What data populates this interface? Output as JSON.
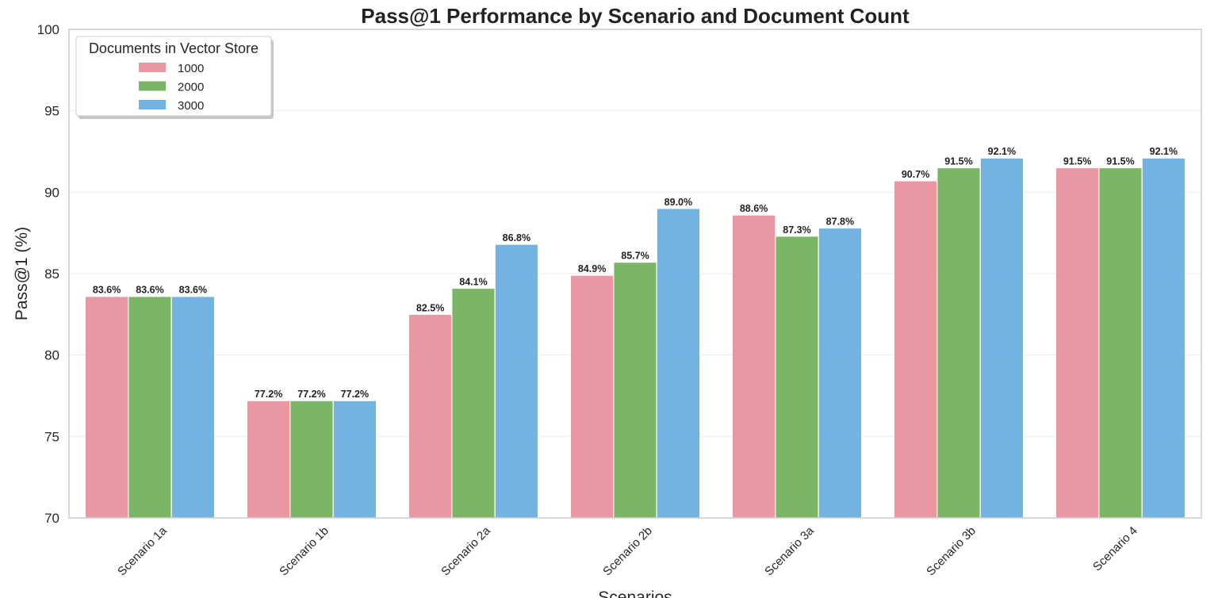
{
  "chart_data": {
    "type": "bar",
    "title": "Pass@1 Performance by Scenario and Document Count",
    "xlabel": "Scenarios",
    "ylabel": "Pass@1 (%)",
    "ylim": [
      70,
      100
    ],
    "yticks": [
      "70",
      "75",
      "80",
      "85",
      "90",
      "95",
      "100"
    ],
    "grid": "y",
    "categories": [
      "Scenario 1a",
      "Scenario 1b",
      "Scenario 2a",
      "Scenario 2b",
      "Scenario 3a",
      "Scenario 3b",
      "Scenario 4"
    ],
    "series": [
      {
        "name": "1000",
        "color": "#E8919E",
        "values": [
          83.6,
          77.2,
          82.5,
          84.9,
          88.6,
          90.7,
          91.5
        ],
        "labels": [
          "83.6%",
          "77.2%",
          "82.5%",
          "84.9%",
          "88.6%",
          "90.7%",
          "91.5%"
        ]
      },
      {
        "name": "2000",
        "color": "#74B25E",
        "values": [
          83.6,
          77.2,
          84.1,
          85.7,
          87.3,
          91.5,
          91.5
        ],
        "labels": [
          "83.6%",
          "77.2%",
          "84.1%",
          "85.7%",
          "87.3%",
          "91.5%",
          "91.5%"
        ]
      },
      {
        "name": "3000",
        "color": "#6CAFE0",
        "values": [
          83.6,
          77.2,
          86.8,
          89.0,
          87.8,
          92.1,
          92.1
        ],
        "labels": [
          "83.6%",
          "77.2%",
          "86.8%",
          "89.0%",
          "87.8%",
          "92.1%",
          "92.1%"
        ]
      }
    ],
    "legend": {
      "title": "Documents in Vector Store",
      "placement": "top-left"
    }
  }
}
